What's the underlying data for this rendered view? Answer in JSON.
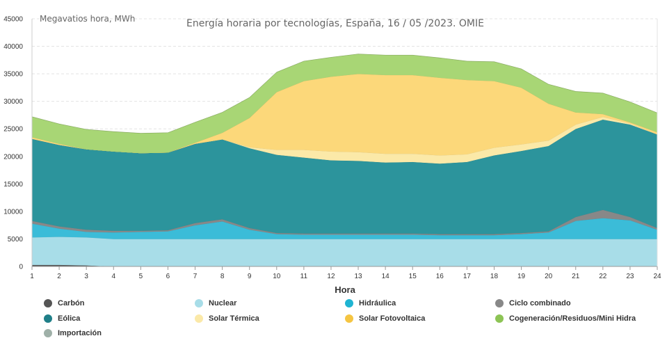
{
  "chart_data": {
    "type": "area",
    "stacked": true,
    "title": "Energía horaria por tecnologías, España, 16 / 05 /2023. OMIE",
    "units_label": "Megavatios hora, MWh",
    "xlabel": "Hora",
    "ylabel": "",
    "ylim": [
      0,
      45000
    ],
    "yticks": [
      0,
      5000,
      10000,
      15000,
      20000,
      25000,
      30000,
      35000,
      40000,
      45000
    ],
    "x": [
      1,
      2,
      3,
      4,
      5,
      6,
      7,
      8,
      9,
      10,
      11,
      12,
      13,
      14,
      15,
      16,
      17,
      18,
      19,
      20,
      21,
      22,
      23,
      24
    ],
    "legend_position": "bottom",
    "series": [
      {
        "name": "Carbón",
        "color": "#555555",
        "values": [
          300,
          300,
          200,
          0,
          0,
          0,
          0,
          0,
          0,
          0,
          0,
          0,
          0,
          0,
          0,
          0,
          0,
          0,
          0,
          0,
          0,
          0,
          0,
          0
        ]
      },
      {
        "name": "Nuclear",
        "color": "#a8dde8",
        "values": [
          5000,
          5100,
          5100,
          5000,
          5000,
          5000,
          5000,
          5000,
          5000,
          5000,
          5000,
          5000,
          5000,
          5000,
          5000,
          5000,
          5000,
          5000,
          5000,
          5000,
          5000,
          5000,
          5000,
          5000
        ]
      },
      {
        "name": "Hidráulica",
        "color": "#3bbcd8",
        "values": [
          2500,
          1500,
          1000,
          1200,
          1300,
          1400,
          2500,
          3200,
          1700,
          900,
          800,
          800,
          800,
          800,
          800,
          700,
          700,
          700,
          900,
          1200,
          3300,
          3800,
          3400,
          1700
        ]
      },
      {
        "name": "Ciclo combinado",
        "color": "#888888",
        "values": [
          500,
          400,
          400,
          300,
          200,
          200,
          400,
          400,
          300,
          200,
          200,
          200,
          200,
          200,
          200,
          200,
          200,
          200,
          200,
          200,
          700,
          1500,
          600,
          300
        ]
      },
      {
        "name": "Eólica",
        "color": "#2c949c",
        "values": [
          14900,
          14800,
          14600,
          14400,
          14100,
          14100,
          14400,
          14500,
          14500,
          14200,
          13800,
          13300,
          13200,
          12900,
          13000,
          12800,
          13100,
          14300,
          14900,
          15500,
          16000,
          16400,
          16800,
          17000
        ]
      },
      {
        "name": "Solar Térmica",
        "color": "#fbe9a8",
        "values": [
          0,
          0,
          0,
          0,
          0,
          0,
          0,
          0,
          200,
          900,
          1400,
          1600,
          1600,
          1600,
          1500,
          1500,
          1400,
          1400,
          1200,
          1000,
          800,
          500,
          200,
          0
        ]
      },
      {
        "name": "Solar Fotovoltaica",
        "color": "#fcd87a",
        "values": [
          300,
          200,
          0,
          0,
          0,
          0,
          200,
          1200,
          5300,
          10500,
          12500,
          13600,
          14200,
          14300,
          14300,
          14100,
          13500,
          12100,
          10300,
          6700,
          2200,
          500,
          200,
          400
        ]
      },
      {
        "name": "Cogeneración/Residuos/Mini Hidra",
        "color": "#a8d675",
        "values": [
          3700,
          3600,
          3600,
          3600,
          3600,
          3600,
          3700,
          3700,
          3700,
          3600,
          3600,
          3500,
          3600,
          3600,
          3600,
          3600,
          3400,
          3500,
          3400,
          3500,
          3800,
          3800,
          3700,
          3500
        ]
      },
      {
        "name": "Importación",
        "color": "#9fb0a8",
        "values": [
          0,
          0,
          0,
          0,
          0,
          0,
          0,
          0,
          0,
          0,
          0,
          0,
          0,
          0,
          0,
          0,
          0,
          0,
          0,
          0,
          0,
          0,
          0,
          0
        ]
      }
    ]
  }
}
